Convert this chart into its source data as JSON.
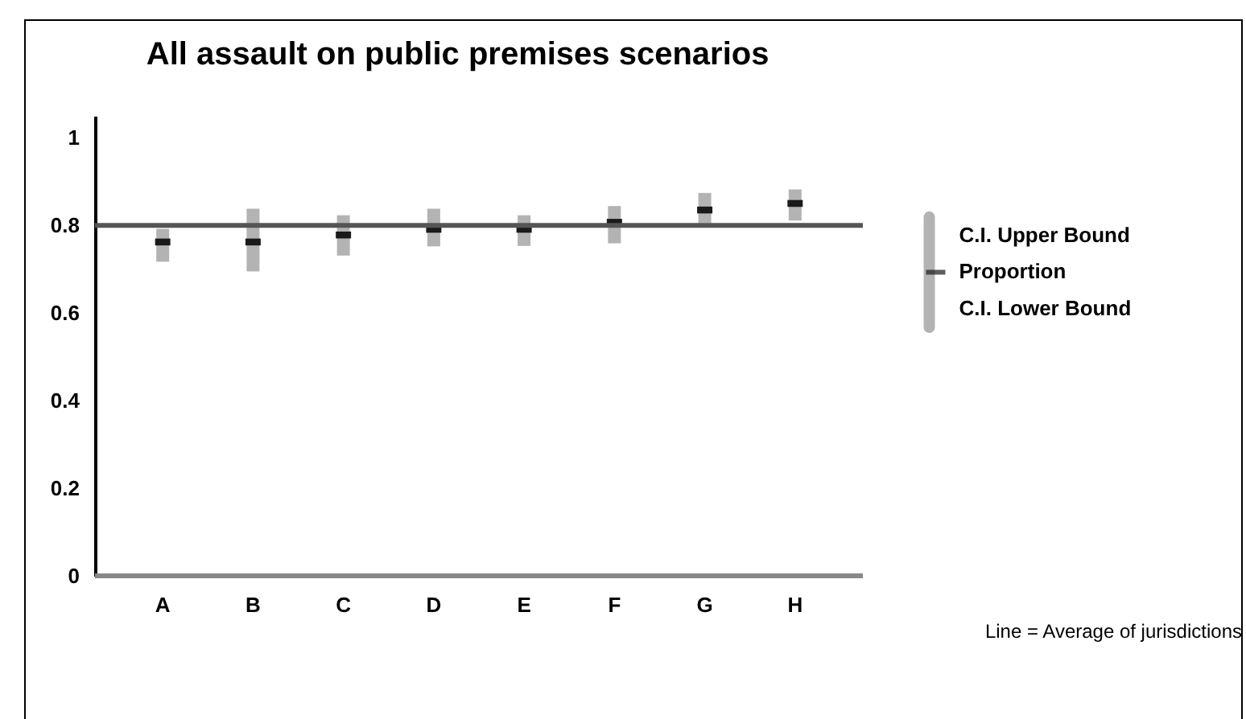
{
  "chart_data": {
    "type": "scatter",
    "title": "All assault on public premises scenarios",
    "categories": [
      "A",
      "B",
      "C",
      "D",
      "E",
      "F",
      "G",
      "H"
    ],
    "series": [
      {
        "name": "Proportion",
        "color": "#1a1a1a",
        "values": [
          0.762,
          0.762,
          0.778,
          0.791,
          0.791,
          0.807,
          0.835,
          0.85
        ],
        "errors": [
          [
            0.717,
            0.792
          ],
          [
            0.695,
            0.838
          ],
          [
            0.731,
            0.823
          ],
          [
            0.752,
            0.838
          ],
          [
            0.753,
            0.823
          ],
          [
            0.759,
            0.844
          ],
          [
            0.805,
            0.874
          ],
          [
            0.811,
            0.882
          ]
        ]
      }
    ],
    "ylim": [
      0,
      1.05
    ],
    "yticks": [
      0,
      0.2,
      0.4,
      0.6,
      0.8,
      1
    ],
    "ref_lines": [
      {
        "axis": "y",
        "value": 0.8,
        "color": "#555555"
      }
    ],
    "legend": "right",
    "annotations": [
      "C.I. Upper Bound",
      "C.I. Lower Bound",
      "Line = Average of jurisdictions"
    ]
  }
}
